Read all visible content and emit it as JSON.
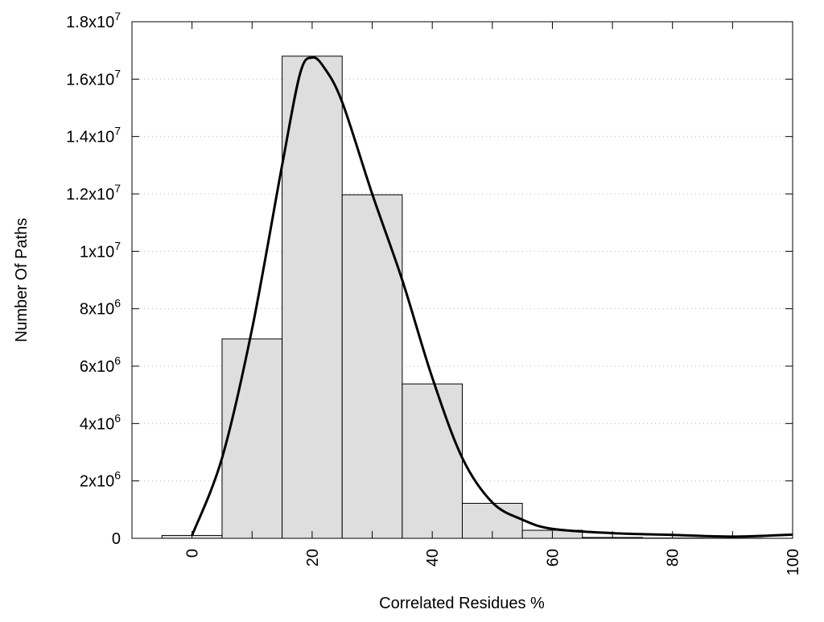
{
  "chart_data": {
    "type": "bar",
    "title": "",
    "xlabel": "Correlated Residues %",
    "ylabel": "Number Of Paths",
    "xlim": [
      -10,
      100
    ],
    "ylim": [
      0,
      18000000
    ],
    "grid": "horizontal dotted",
    "bar_width": 10,
    "bar_color": "#dedede",
    "bars": {
      "x": [
        0,
        10,
        20,
        30,
        40,
        50,
        60,
        70,
        80,
        90
      ],
      "values": [
        100000,
        6950000,
        16800000,
        11970000,
        5380000,
        1220000,
        280000,
        30000,
        10000,
        5000
      ]
    },
    "curve": {
      "x": [
        0,
        5,
        10,
        15,
        18,
        20,
        22,
        25,
        30,
        35,
        40,
        45,
        50,
        55,
        60,
        70,
        80,
        90,
        100
      ],
      "values": [
        100000,
        2800000,
        7300000,
        13000000,
        16200000,
        16750000,
        16400000,
        15200000,
        12000000,
        9000000,
        5600000,
        2800000,
        1250000,
        650000,
        330000,
        180000,
        120000,
        60000,
        130000
      ]
    },
    "xticks": [
      "0",
      "20",
      "40",
      "60",
      "80",
      "100"
    ],
    "xtick_values": [
      0,
      20,
      40,
      60,
      80,
      100
    ],
    "yticks": [
      {
        "value": 0,
        "mantissa": "0",
        "exp": ""
      },
      {
        "value": 2000000,
        "mantissa": "2x10",
        "exp": "6"
      },
      {
        "value": 4000000,
        "mantissa": "4x10",
        "exp": "6"
      },
      {
        "value": 6000000,
        "mantissa": "6x10",
        "exp": "6"
      },
      {
        "value": 8000000,
        "mantissa": "8x10",
        "exp": "6"
      },
      {
        "value": 10000000,
        "mantissa": "1x10",
        "exp": "7"
      },
      {
        "value": 12000000,
        "mantissa": "1.2x10",
        "exp": "7"
      },
      {
        "value": 14000000,
        "mantissa": "1.4x10",
        "exp": "7"
      },
      {
        "value": 16000000,
        "mantissa": "1.6x10",
        "exp": "7"
      },
      {
        "value": 18000000,
        "mantissa": "1.8x10",
        "exp": "7"
      }
    ]
  }
}
